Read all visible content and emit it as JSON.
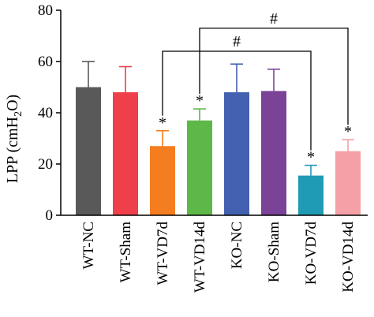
{
  "chart_data": {
    "type": "bar",
    "ylabel": "LPP (cmH",
    "ylabel_sub": "2",
    "ylabel_end": "O)",
    "ylim": [
      0,
      80
    ],
    "yticks": [
      "0",
      "20",
      "40",
      "60",
      "80"
    ],
    "categories": [
      "WT-NC",
      "WT-Sham",
      "WT-VD7d",
      "WT-VD14d",
      "KO-NC",
      "KO-Sham",
      "KO-VD7d",
      "KO-VD14d"
    ],
    "values": [
      50,
      48,
      27,
      37,
      48,
      48.5,
      15.5,
      25
    ],
    "errors": [
      10,
      10,
      6,
      4.5,
      11,
      8.5,
      4,
      4.5
    ],
    "colors": [
      "#595959",
      "#ef3f4a",
      "#f47d20",
      "#5db847",
      "#4361b0",
      "#7b4398",
      "#1f9bb5",
      "#f4a0a6"
    ],
    "significance_marks": [
      {
        "category": "WT-VD7d",
        "symbol": "*"
      },
      {
        "category": "WT-VD14d",
        "symbol": "*"
      },
      {
        "category": "KO-VD7d",
        "symbol": "*"
      },
      {
        "category": "KO-VD14d",
        "symbol": "*"
      }
    ],
    "comparisons": [
      {
        "from": "WT-VD7d",
        "to": "KO-VD7d",
        "symbol": "#"
      },
      {
        "from": "WT-VD14d",
        "to": "KO-VD14d",
        "symbol": "#"
      }
    ],
    "grid": false
  }
}
